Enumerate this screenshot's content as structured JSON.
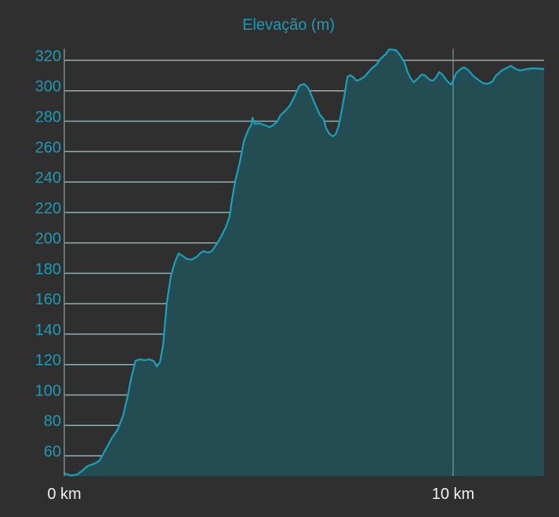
{
  "chart_data": {
    "type": "area",
    "title": "Elevação (m)",
    "xlabel": "",
    "ylabel": "",
    "xlim": [
      0,
      12.34
    ],
    "ylim": [
      46.6,
      327.7
    ],
    "yticks": [
      60,
      80,
      100,
      120,
      140,
      160,
      180,
      200,
      220,
      240,
      260,
      280,
      300,
      320
    ],
    "ytick_labels": [
      "60",
      "80",
      "100",
      "120",
      "140",
      "160",
      "180",
      "200",
      "220",
      "240",
      "260",
      "280",
      "300",
      "320"
    ],
    "xticks": [
      0,
      10
    ],
    "xtick_labels": [
      "0 km",
      "10 km"
    ],
    "grid": "horizontal at each y tick; vertical at 10 km",
    "colors": {
      "background": "#2f2f2f",
      "line": "#17a2ba",
      "fill": "#234c53",
      "text": "#1d9bb2",
      "xtext": "#f0f0f0",
      "grid": "#a9b0b0"
    },
    "series": [
      {
        "name": "Elevação",
        "x": [
          0.0,
          0.16,
          0.32,
          0.46,
          0.6,
          0.77,
          0.91,
          1.07,
          1.23,
          1.37,
          1.51,
          1.63,
          1.73,
          1.83,
          1.94,
          2.08,
          2.18,
          2.3,
          2.38,
          2.46,
          2.54,
          2.64,
          2.74,
          2.84,
          2.94,
          3.04,
          3.15,
          3.27,
          3.39,
          3.51,
          3.59,
          3.69,
          3.79,
          3.91,
          4.03,
          4.15,
          4.25,
          4.31,
          4.4,
          4.5,
          4.58,
          4.62,
          4.72,
          4.82,
          4.84,
          4.9,
          5.0,
          5.12,
          5.28,
          5.36,
          5.48,
          5.56,
          5.69,
          5.81,
          5.93,
          6.05,
          6.17,
          6.27,
          6.37,
          6.47,
          6.57,
          6.67,
          6.73,
          6.81,
          6.9,
          6.98,
          7.06,
          7.14,
          7.22,
          7.28,
          7.36,
          7.42,
          7.52,
          7.62,
          7.74,
          7.82,
          7.94,
          8.02,
          8.13,
          8.27,
          8.35,
          8.53,
          8.63,
          8.75,
          8.83,
          8.91,
          8.99,
          9.07,
          9.19,
          9.27,
          9.4,
          9.48,
          9.56,
          9.64,
          9.72,
          9.84,
          9.94,
          10.0,
          10.08,
          10.22,
          10.28,
          10.4,
          10.52,
          10.65,
          10.77,
          10.89,
          11.01,
          11.09,
          11.25,
          11.41,
          11.49,
          11.61,
          11.73,
          11.9,
          12.06,
          12.34
        ],
        "y": [
          48.6,
          47.1,
          47.6,
          50.2,
          53.3,
          54.8,
          56.9,
          64.6,
          71.9,
          77.1,
          86.3,
          99.2,
          112.1,
          122.4,
          123.4,
          122.9,
          123.4,
          122.4,
          118.8,
          121.4,
          132.7,
          161.1,
          178.1,
          186.9,
          193.1,
          191.5,
          189.5,
          189.0,
          190.5,
          193.6,
          194.6,
          193.6,
          194.6,
          198.8,
          203.9,
          210.1,
          217.3,
          228.2,
          241.1,
          251.4,
          261.7,
          266.9,
          273.6,
          278.2,
          282.3,
          278.2,
          278.7,
          277.7,
          276.1,
          277.2,
          279.8,
          283.9,
          287.0,
          290.6,
          296.8,
          303.5,
          304.5,
          301.9,
          296.3,
          290.1,
          284.4,
          281.3,
          275.6,
          272.0,
          270.0,
          271.5,
          277.2,
          287.5,
          299.4,
          309.2,
          310.2,
          309.2,
          306.6,
          307.6,
          309.7,
          312.3,
          315.4,
          316.9,
          321.0,
          324.1,
          327.2,
          326.7,
          323.6,
          318.5,
          312.3,
          308.1,
          305.6,
          307.6,
          310.7,
          310.2,
          307.1,
          306.6,
          308.7,
          312.3,
          310.7,
          306.6,
          304.0,
          306.6,
          311.7,
          314.8,
          315.4,
          313.3,
          309.7,
          307.1,
          305.0,
          304.5,
          306.1,
          309.7,
          313.3,
          315.4,
          316.4,
          314.3,
          313.3,
          314.3,
          314.8,
          314.3
        ]
      }
    ]
  }
}
